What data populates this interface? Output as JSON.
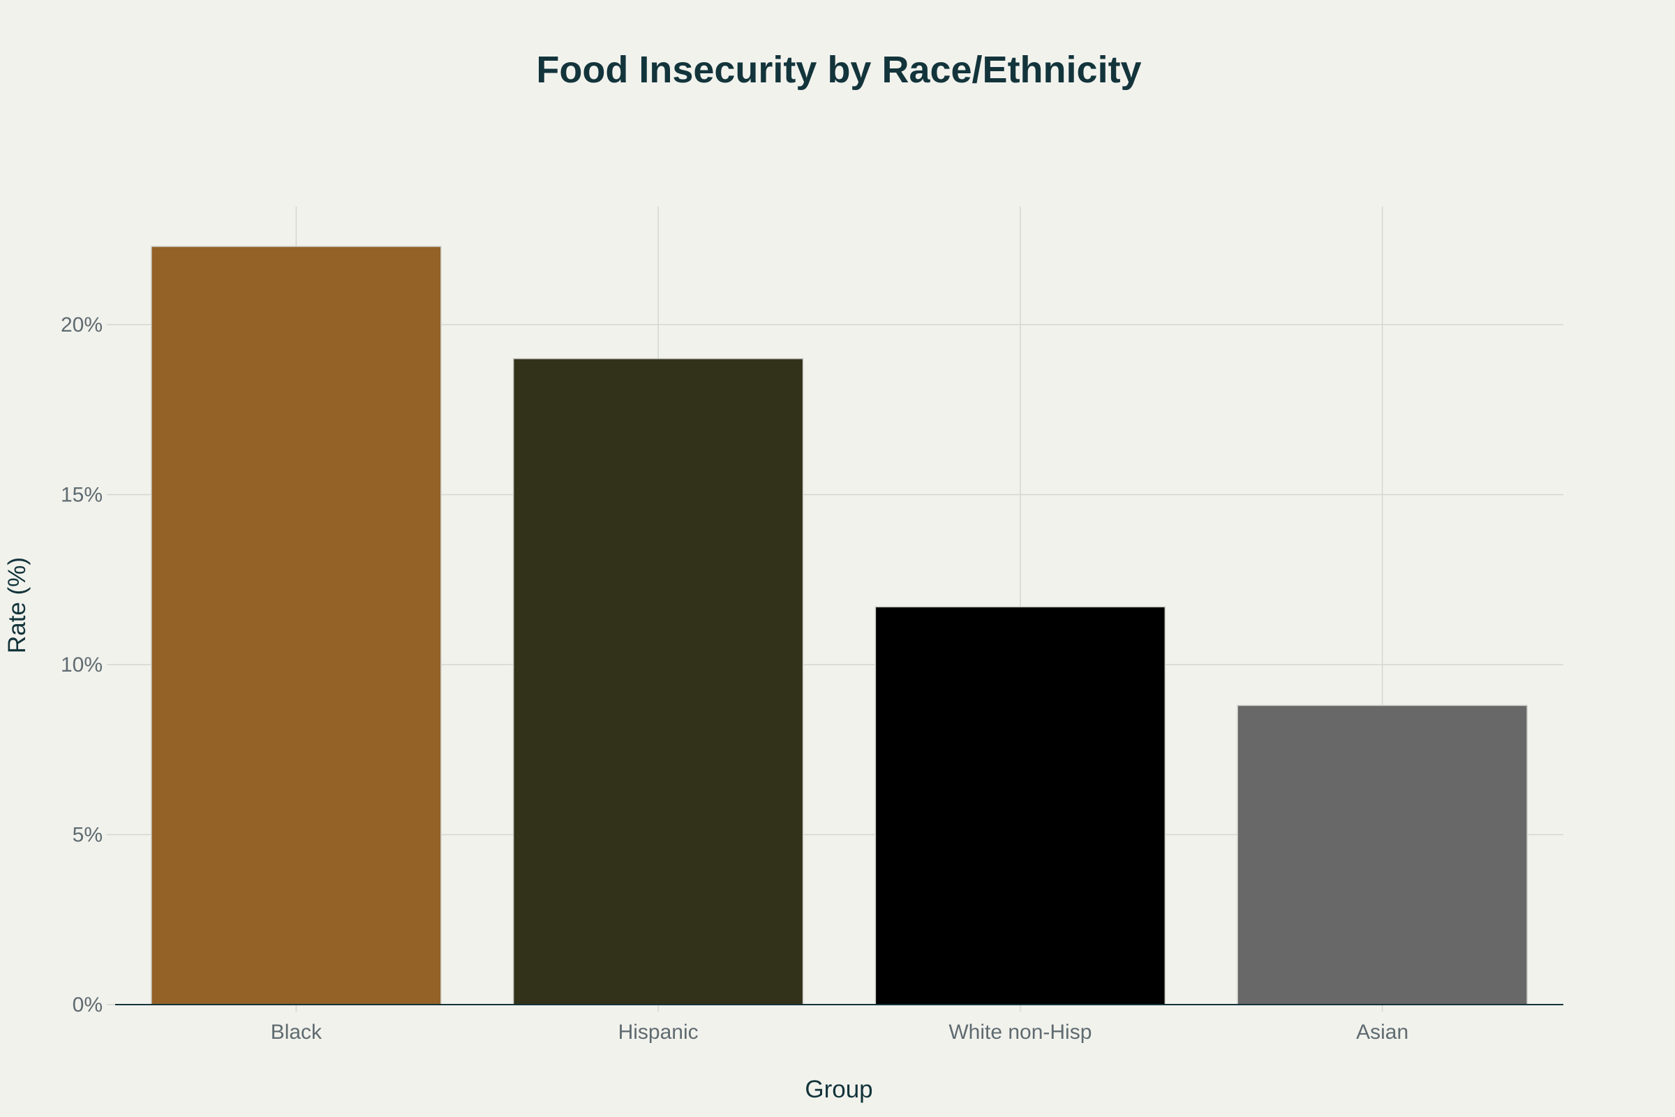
{
  "chart_data": {
    "type": "bar",
    "title": "Food Insecurity by Race/Ethnicity",
    "xlabel": "Group",
    "ylabel": "Rate (%)",
    "categories": [
      "Black",
      "Hispanic",
      "White non-Hisp",
      "Asian"
    ],
    "values": [
      22.3,
      19.0,
      11.7,
      8.8
    ],
    "colors": [
      "#946126",
      "#323119",
      "#000000",
      "#686868"
    ],
    "ylim": [
      0,
      23.47
    ],
    "yticks": [
      0,
      5,
      10,
      15,
      20
    ],
    "ytick_labels": [
      "0%",
      "5%",
      "10%",
      "15%",
      "20%"
    ],
    "grid": true,
    "legend": "none"
  },
  "colors": {
    "background": "#f2f2ed",
    "grid": "#d6d6d1",
    "title": "#13343b",
    "tick_text": "#5f6b70"
  }
}
